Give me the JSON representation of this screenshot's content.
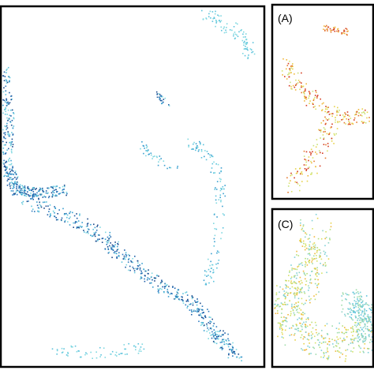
{
  "panels": [
    {
      "label": "(A)"
    },
    {
      "label": "(C)"
    }
  ]
}
